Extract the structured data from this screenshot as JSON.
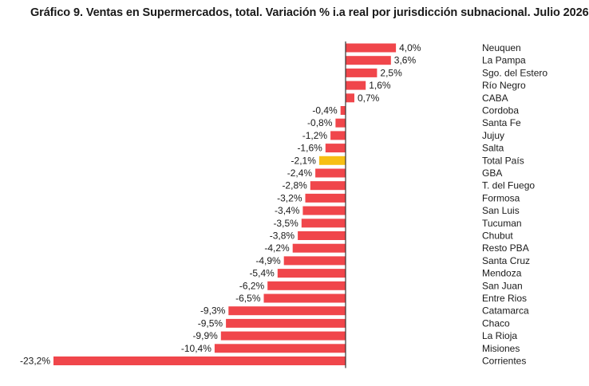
{
  "chart_data": {
    "type": "bar",
    "orientation": "horizontal",
    "title": "Gráfico 9. Ventas en Supermercados, total. Variación % i.a real por jurisdicción subnacional. Julio 2026",
    "categories": [
      "Neuquen",
      "La Pampa",
      "Sgo. del Estero",
      "Río Negro",
      "CABA",
      "Cordoba",
      "Santa Fe",
      "Jujuy",
      "Salta",
      "Total País",
      "GBA",
      "T. del Fuego",
      "Formosa",
      "San Luis",
      "Tucuman",
      "Chubut",
      "Resto PBA",
      "Santa Cruz",
      "Mendoza",
      "San Juan",
      "Entre Rios",
      "Catamarca",
      "Chaco",
      "La Rioja",
      "Misiones",
      "Corrientes"
    ],
    "values": [
      4.0,
      3.6,
      2.5,
      1.6,
      0.7,
      -0.4,
      -0.8,
      -1.2,
      -1.6,
      -2.1,
      -2.4,
      -2.8,
      -3.2,
      -3.4,
      -3.5,
      -3.8,
      -4.2,
      -4.9,
      -5.4,
      -6.2,
      -6.5,
      -9.3,
      -9.5,
      -9.9,
      -10.4,
      -23.2
    ],
    "value_labels": [
      "4,0%",
      "3,6%",
      "2,5%",
      "1,6%",
      "0,7%",
      "-0,4%",
      "-0,8%",
      "-1,2%",
      "-1,6%",
      "-2,1%",
      "-2,4%",
      "-2,8%",
      "-3,2%",
      "-3,4%",
      "-3,5%",
      "-3,8%",
      "-4,2%",
      "-4,9%",
      "-5,4%",
      "-6,2%",
      "-6,5%",
      "-9,3%",
      "-9,5%",
      "-9,9%",
      "-10,4%",
      "-23,2%"
    ],
    "xlim": [
      -23.2,
      4.0
    ],
    "highlight_category": "Total País",
    "colors": {
      "bar": "#f0464b",
      "highlight": "#f7bf14",
      "axis": "#333333"
    },
    "grid": false,
    "legend": "none"
  }
}
